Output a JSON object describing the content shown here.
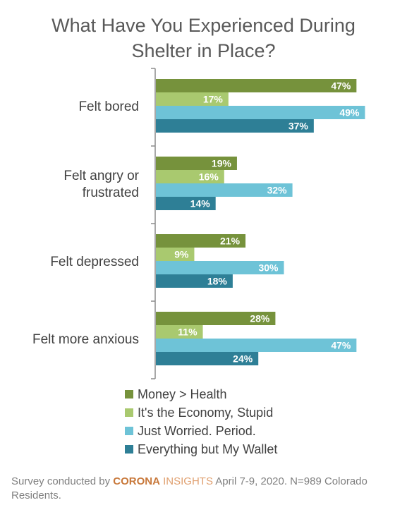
{
  "chart_data": {
    "type": "bar",
    "orientation": "horizontal",
    "title_lines": [
      "What Have You Experienced During",
      "Shelter in Place?"
    ],
    "categories": [
      "Felt bored",
      "Felt angry or frustrated",
      "Felt depressed",
      "Felt more anxious"
    ],
    "category_label_lines": [
      [
        "Felt bored"
      ],
      [
        "Felt angry or",
        "frustrated"
      ],
      [
        "Felt depressed"
      ],
      [
        "Felt more anxious"
      ]
    ],
    "series": [
      {
        "name": "Money > Health",
        "color": "#76923c",
        "values": [
          47,
          19,
          21,
          28
        ]
      },
      {
        "name": "It's the Economy, Stupid",
        "color": "#a9c96f",
        "values": [
          17,
          16,
          9,
          11
        ]
      },
      {
        "name": "Just Worried. Period.",
        "color": "#6ec3d7",
        "values": [
          49,
          32,
          30,
          47
        ]
      },
      {
        "name": "Everything but My Wallet",
        "color": "#2e7f96",
        "values": [
          37,
          14,
          18,
          24
        ]
      }
    ],
    "value_suffix": "%",
    "xlim": [
      0,
      60
    ],
    "grid": false,
    "legend_position": "bottom"
  },
  "footer": {
    "prefix": "Survey conducted by ",
    "brand_bold": "CORONA",
    "brand_light": " INSIGHTS",
    "suffix": " April 7-9, 2020. N=989 Colorado Residents."
  }
}
